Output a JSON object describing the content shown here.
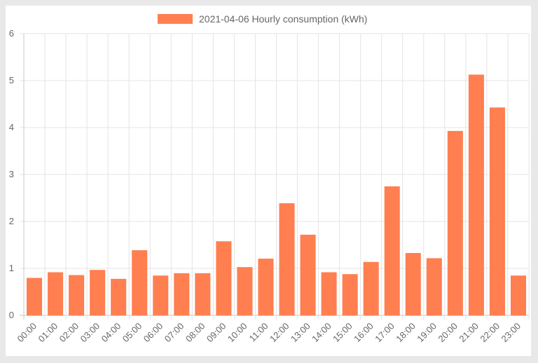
{
  "chart_data": {
    "type": "bar",
    "categories": [
      "00:00",
      "01:00",
      "02:00",
      "03:00",
      "04:00",
      "05:00",
      "06:00",
      "07:00",
      "08:00",
      "09:00",
      "10:00",
      "11:00",
      "12:00",
      "13:00",
      "14:00",
      "15:00",
      "16:00",
      "17:00",
      "18:00",
      "19:00",
      "20:00",
      "21:00",
      "22:00",
      "23:00"
    ],
    "series": [
      {
        "name": "2021-04-06 Hourly consumption (kWh)",
        "values": [
          0.79,
          0.91,
          0.85,
          0.96,
          0.77,
          1.38,
          0.84,
          0.89,
          0.89,
          1.57,
          1.02,
          1.2,
          2.38,
          1.71,
          0.91,
          0.87,
          1.13,
          2.74,
          1.32,
          1.21,
          3.92,
          5.12,
          4.42,
          0.84
        ]
      }
    ],
    "ylim": [
      0,
      6
    ],
    "yticks": [
      "0",
      "1",
      "2",
      "3",
      "4",
      "5",
      "6"
    ],
    "grid": true,
    "legend_position": "top-center",
    "colors": {
      "bar_fill": "#ff7f50",
      "bar_stroke": "#ff7f50",
      "grid": "#e4e4e4",
      "axis": "#c8c8c8"
    }
  }
}
